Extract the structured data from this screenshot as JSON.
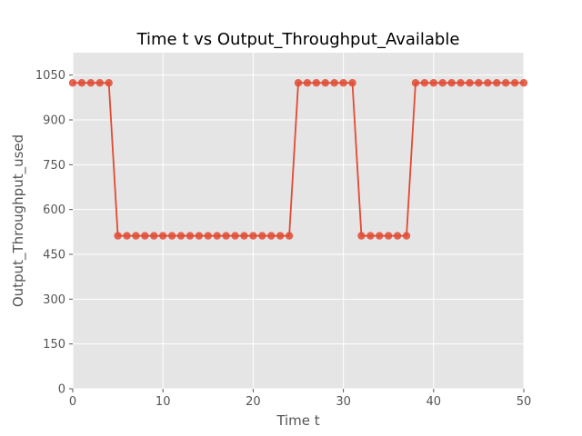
{
  "chart_data": {
    "type": "line",
    "title": "Time t vs Output_Throughput_Available",
    "xlabel": "Time t",
    "ylabel": "Output_Throughput_used",
    "xlim": [
      0,
      50
    ],
    "ylim": [
      0,
      1125
    ],
    "xticks": [
      0,
      10,
      20,
      30,
      40,
      50
    ],
    "yticks": [
      0,
      150,
      300,
      450,
      600,
      750,
      900,
      1050
    ],
    "grid": true,
    "colors": {
      "series": "#E24A33",
      "background": "#E5E5E5",
      "grid": "#FFFFFF"
    },
    "series": [
      {
        "x": [
          0,
          1,
          2,
          3,
          4,
          5,
          6,
          7,
          8,
          9,
          10,
          11,
          12,
          13,
          14,
          15,
          16,
          17,
          18,
          19,
          20,
          21,
          22,
          23,
          24,
          25,
          26,
          27,
          28,
          29,
          30,
          31,
          32,
          33,
          34,
          35,
          36,
          37,
          38,
          39,
          40,
          41,
          42,
          43,
          44,
          45,
          46,
          47,
          48,
          49,
          50
        ],
        "values": [
          1024,
          1024,
          1024,
          1024,
          1024,
          512,
          512,
          512,
          512,
          512,
          512,
          512,
          512,
          512,
          512,
          512,
          512,
          512,
          512,
          512,
          512,
          512,
          512,
          512,
          512,
          1024,
          1024,
          1024,
          1024,
          1024,
          1024,
          1024,
          512,
          512,
          512,
          512,
          512,
          512,
          1024,
          1024,
          1024,
          1024,
          1024,
          1024,
          1024,
          1024,
          1024,
          1024,
          1024,
          1024,
          1024
        ]
      }
    ]
  }
}
